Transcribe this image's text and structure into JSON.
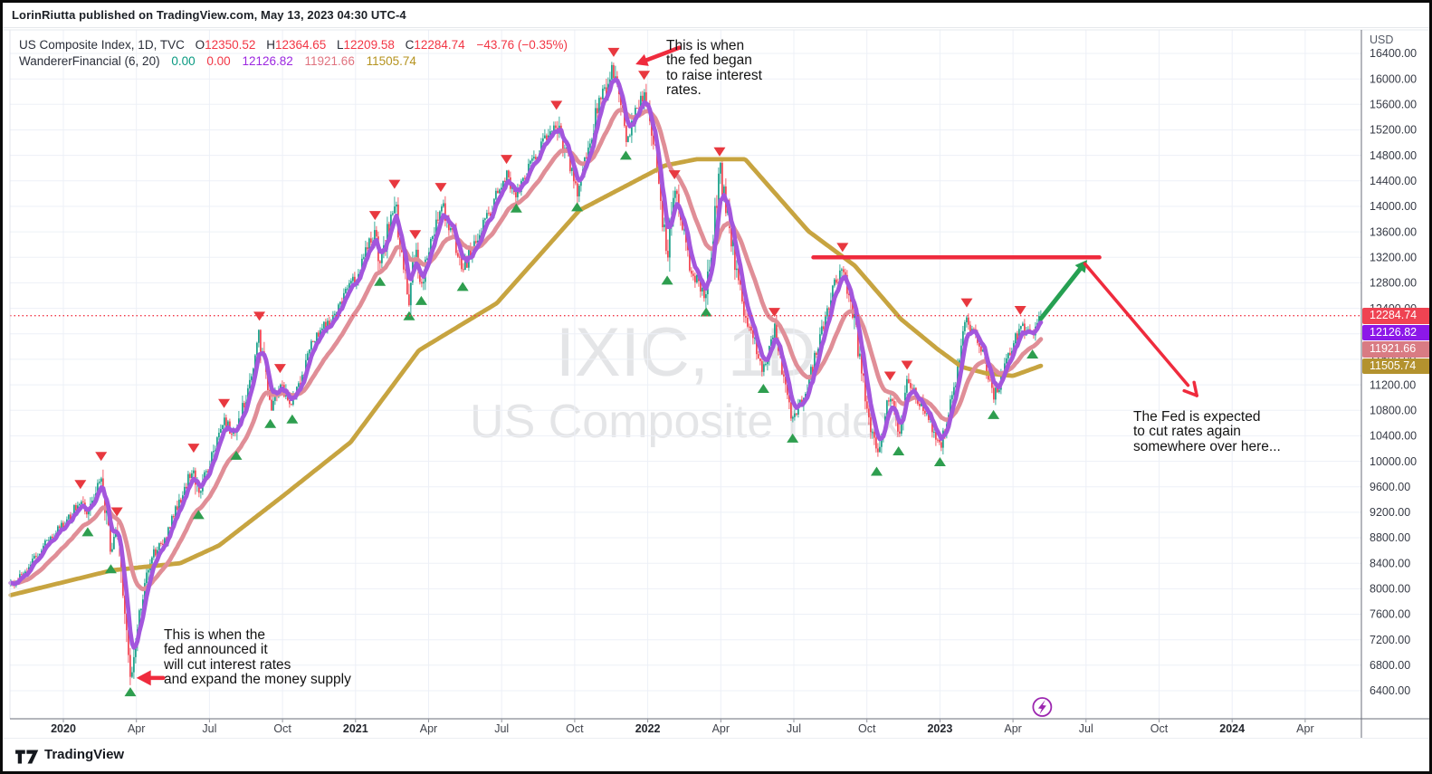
{
  "header": {
    "published_line": "LorinRiutta published on TradingView.com, May 13, 2023 04:30 UTC-4"
  },
  "legend": {
    "row1": {
      "title": "US Composite Index, 1D, TVC",
      "o_label": "O",
      "o": "12350.52",
      "h_label": "H",
      "h": "12364.65",
      "l_label": "L",
      "l": "12209.58",
      "c_label": "C",
      "c": "12284.74",
      "change": "−43.76 (−0.35%)"
    },
    "row2": {
      "title": "WandererFinancial (6, 20)",
      "v_green": "0.00",
      "v_red": "0.00",
      "v_fast": "12126.82",
      "v_mid": "11921.66",
      "v_slow": "11505.74"
    }
  },
  "watermark": {
    "line1": "IXIC, 1D",
    "line2": "US Composite Index"
  },
  "annotations": {
    "raise": {
      "lines": [
        "This is when",
        "the fed began",
        "to raise interest",
        "rates."
      ]
    },
    "cut": {
      "lines": [
        "This is when the",
        "fed announced it",
        "will cut interest rates",
        "and expand the money supply"
      ]
    },
    "expect": {
      "lines": [
        "The Fed is expected",
        "to cut rates again",
        "somewhere over here..."
      ]
    }
  },
  "footer": {
    "brand": "TradingView"
  },
  "chart_data": {
    "type": "candlestick",
    "symbol": "IXIC",
    "exchange": "TVC",
    "interval": "1D",
    "title": "US Composite Index",
    "current": {
      "open": 12350.52,
      "high": 12364.65,
      "low": 12209.58,
      "close": 12284.74,
      "change": -43.76,
      "change_pct": -0.35
    },
    "indicator": {
      "name": "WandererFinancial",
      "params": [
        6,
        20
      ],
      "values": [
        0.0,
        0.0,
        12126.82,
        11921.66,
        11505.74
      ]
    },
    "y_axis": {
      "min": 6400,
      "max": 16400,
      "step": 400,
      "currency": "USD"
    },
    "x_axis": {
      "labels": [
        {
          "text": "2020",
          "m": 0,
          "year": true
        },
        {
          "text": "Apr",
          "m": 3
        },
        {
          "text": "Jul",
          "m": 6
        },
        {
          "text": "Oct",
          "m": 9
        },
        {
          "text": "2021",
          "m": 12,
          "year": true
        },
        {
          "text": "Apr",
          "m": 15
        },
        {
          "text": "Jul",
          "m": 18
        },
        {
          "text": "Oct",
          "m": 21
        },
        {
          "text": "2022",
          "m": 24,
          "year": true
        },
        {
          "text": "Apr",
          "m": 27
        },
        {
          "text": "Jul",
          "m": 30
        },
        {
          "text": "Oct",
          "m": 33
        },
        {
          "text": "2023",
          "m": 36,
          "year": true
        },
        {
          "text": "Apr",
          "m": 39
        },
        {
          "text": "Jul",
          "m": 42
        },
        {
          "text": "Oct",
          "m": 45
        },
        {
          "text": "2024",
          "m": 48,
          "year": true
        },
        {
          "text": "Apr",
          "m": 51
        }
      ]
    },
    "price_path": [
      [
        -2.16,
        8050
      ],
      [
        -1.5,
        8300
      ],
      [
        -0.8,
        8700
      ],
      [
        0.0,
        9000
      ],
      [
        0.7,
        9380
      ],
      [
        1.0,
        9150
      ],
      [
        1.55,
        9820
      ],
      [
        1.95,
        8570
      ],
      [
        2.2,
        8950
      ],
      [
        2.75,
        6640
      ],
      [
        3.2,
        7800
      ],
      [
        3.6,
        8500
      ],
      [
        4.2,
        8800
      ],
      [
        4.7,
        9300
      ],
      [
        5.35,
        9950
      ],
      [
        5.55,
        9420
      ],
      [
        6.1,
        10100
      ],
      [
        6.6,
        10650
      ],
      [
        7.1,
        10350
      ],
      [
        8.05,
        12020
      ],
      [
        8.5,
        10850
      ],
      [
        8.9,
        11200
      ],
      [
        9.4,
        10920
      ],
      [
        10.3,
        11900
      ],
      [
        11.0,
        12250
      ],
      [
        11.97,
        12870
      ],
      [
        12.8,
        13600
      ],
      [
        13.0,
        13080
      ],
      [
        13.6,
        14090
      ],
      [
        14.2,
        12540
      ],
      [
        14.45,
        13300
      ],
      [
        14.7,
        12780
      ],
      [
        15.5,
        14040
      ],
      [
        16.0,
        13580
      ],
      [
        16.4,
        13000
      ],
      [
        17.3,
        13760
      ],
      [
        18.2,
        14480
      ],
      [
        18.6,
        14230
      ],
      [
        19.6,
        14940
      ],
      [
        20.25,
        15330
      ],
      [
        21.1,
        14250
      ],
      [
        21.9,
        15480
      ],
      [
        22.6,
        16160
      ],
      [
        23.1,
        15060
      ],
      [
        23.85,
        15800
      ],
      [
        24.3,
        14900
      ],
      [
        24.8,
        13100
      ],
      [
        25.1,
        14240
      ],
      [
        25.8,
        12960
      ],
      [
        26.4,
        12600
      ],
      [
        26.95,
        14600
      ],
      [
        27.9,
        12400
      ],
      [
        28.4,
        11900
      ],
      [
        28.75,
        11400
      ],
      [
        29.2,
        12080
      ],
      [
        29.95,
        10620
      ],
      [
        30.6,
        11200
      ],
      [
        31.5,
        12580
      ],
      [
        32.0,
        13100
      ],
      [
        32.5,
        12220
      ],
      [
        33.05,
        10650
      ],
      [
        33.4,
        10100
      ],
      [
        33.95,
        11080
      ],
      [
        34.3,
        10420
      ],
      [
        34.65,
        11250
      ],
      [
        35.3,
        10850
      ],
      [
        36.0,
        10250
      ],
      [
        36.8,
        11550
      ],
      [
        37.1,
        12230
      ],
      [
        37.8,
        11650
      ],
      [
        38.2,
        10990
      ],
      [
        39.3,
        12110
      ],
      [
        39.8,
        11940
      ],
      [
        40.2,
        12284.74
      ]
    ],
    "ma_slow_path": [
      [
        -2.16,
        7900
      ],
      [
        2.0,
        8290
      ],
      [
        4.8,
        8400
      ],
      [
        6.4,
        8680
      ],
      [
        9.0,
        9450
      ],
      [
        11.8,
        10300
      ],
      [
        14.6,
        11740
      ],
      [
        17.8,
        12480
      ],
      [
        21.2,
        13940
      ],
      [
        24.7,
        14640
      ],
      [
        26.0,
        14740
      ],
      [
        28.0,
        14740
      ],
      [
        30.6,
        13610
      ],
      [
        32.5,
        13070
      ],
      [
        34.4,
        12230
      ],
      [
        35.9,
        11760
      ],
      [
        36.9,
        11480
      ],
      [
        37.9,
        11380
      ],
      [
        39.0,
        11340
      ],
      [
        40.2,
        11505.74
      ]
    ],
    "price_scale": {
      "currency": "USD",
      "badges": [
        {
          "value": "12284.74",
          "price": 12284.74,
          "color": "#ef4352"
        },
        {
          "value": "12126.82",
          "price": 12126.82,
          "color": "#8c18e8"
        },
        {
          "value": "11921.66",
          "price": 11921.66,
          "color": "#d97b83"
        },
        {
          "value": "11505.74",
          "price": 11505.74,
          "color": "#b3922e"
        }
      ]
    },
    "drawings": {
      "resistance_line": {
        "price": 13200,
        "m_from": 30.8,
        "m_to": 42.55
      },
      "green_arrow": {
        "from": [
          40.15,
          12240
        ],
        "to": [
          42.05,
          13160
        ]
      },
      "down_arrow": {
        "from": [
          41.95,
          13100
        ],
        "to": [
          46.55,
          11030
        ]
      },
      "raise_arrow": {
        "from": [
          25.3,
          16490
        ],
        "to": [
          23.5,
          16230
        ]
      },
      "cut_arrow": {
        "from": [
          4.1,
          6600
        ],
        "to": [
          3.0,
          6600
        ]
      },
      "current_price_line": 12284.74,
      "lightning_icon": {
        "m": 40.2
      }
    },
    "colors": {
      "candle_up": "#089981",
      "candle_down": "#f23645",
      "ma_fast": "#a356dd",
      "ma_mid": "#e08e97",
      "ma_slow": "#c7a440",
      "marker_up": "#2e9e4f",
      "marker_down": "#e8383f",
      "price_line": "#f23645",
      "drawing_red": "#ef2b3d",
      "drawing_green": "#26a052",
      "grid": "#edf0f7",
      "axis_text": "#363a45"
    }
  }
}
